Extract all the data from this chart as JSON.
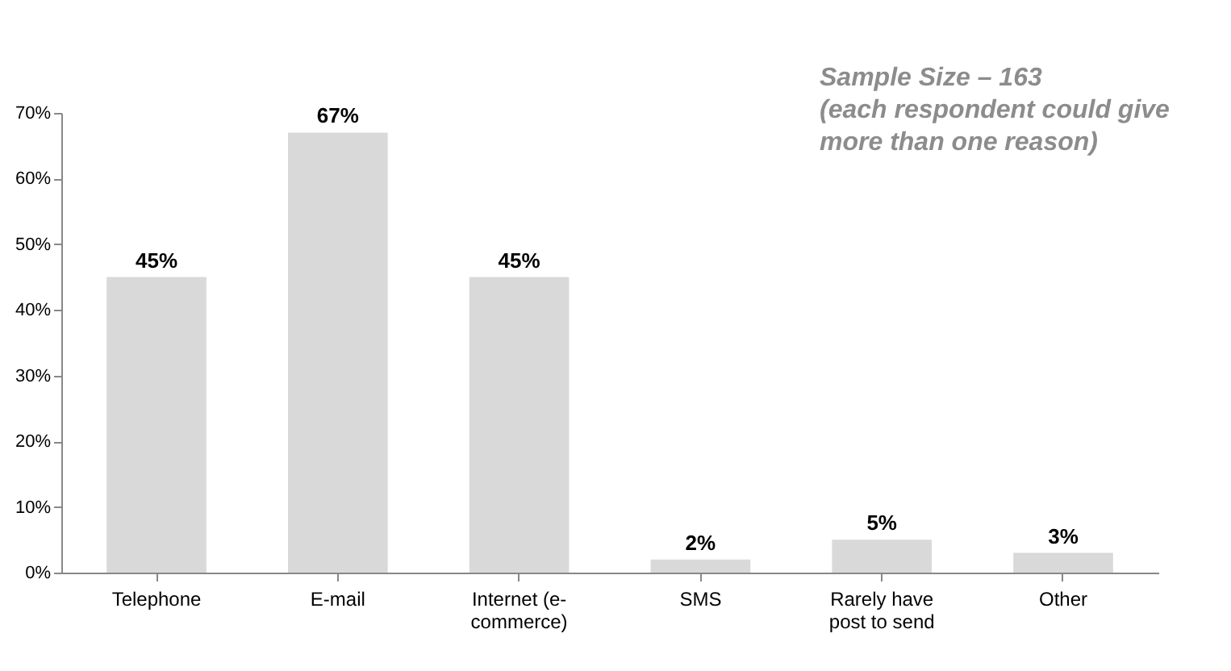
{
  "chart_data": {
    "type": "bar",
    "categories": [
      "Telephone",
      "E-mail",
      "Internet (e-commerce)",
      "SMS",
      "Rarely have post to send",
      "Other"
    ],
    "values": [
      45,
      67,
      45,
      2,
      5,
      3
    ],
    "value_labels": [
      "45%",
      "67%",
      "45%",
      "2%",
      "5%",
      "3%"
    ],
    "color": "#d9d9d9",
    "ylim": [
      0,
      70
    ],
    "yticks": [
      {
        "value": 0,
        "label": "0%"
      },
      {
        "value": 10,
        "label": "10%"
      },
      {
        "value": 20,
        "label": "20%"
      },
      {
        "value": 30,
        "label": "30%"
      },
      {
        "value": 40,
        "label": "40%"
      },
      {
        "value": 50,
        "label": "50%"
      },
      {
        "value": 60,
        "label": "60%"
      },
      {
        "value": 70,
        "label": "70%"
      }
    ],
    "annotations": [
      "Sample Size – 163",
      "(each respondent could give more than one reason)"
    ]
  }
}
